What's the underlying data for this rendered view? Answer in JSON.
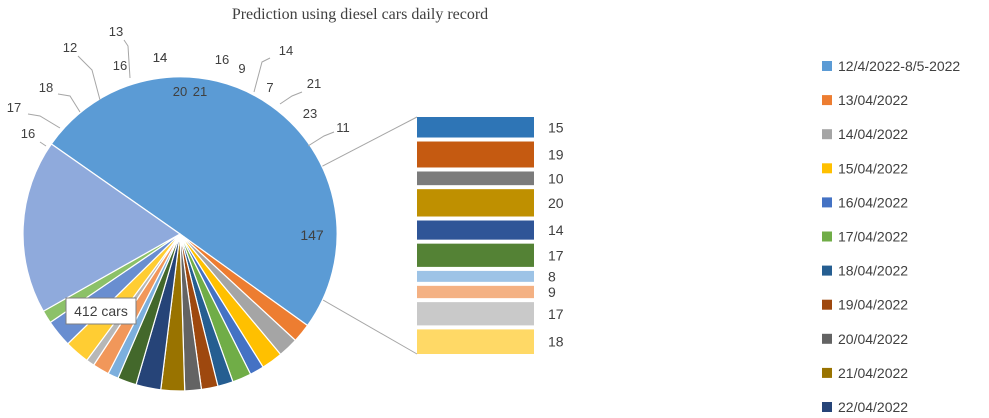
{
  "chart_data": {
    "type": "pie",
    "subtype": "bar-of-pie",
    "title": "Prediction using diesel cars daily record",
    "slices": [
      {
        "label": "412 cars",
        "value": 412,
        "color": "#5b9bd5",
        "boxed": true
      },
      {
        "label": "16",
        "value": 16,
        "color": "#ed7d31"
      },
      {
        "label": "17",
        "value": 17,
        "color": "#a5a5a5"
      },
      {
        "label": "18",
        "value": 18,
        "color": "#ffc000"
      },
      {
        "label": "12",
        "value": 12,
        "color": "#4472c4"
      },
      {
        "label": "16",
        "value": 16,
        "color": "#70ad47"
      },
      {
        "label": "13",
        "value": 13,
        "color": "#255e91"
      },
      {
        "label": "14",
        "value": 14,
        "color": "#9e480e"
      },
      {
        "label": "14",
        "value": 14,
        "color": "#636363"
      },
      {
        "label": "20",
        "value": 20,
        "color": "#997300"
      },
      {
        "label": "21",
        "value": 21,
        "color": "#264478"
      },
      {
        "label": "16",
        "value": 16,
        "color": "#43682b"
      },
      {
        "label": "9",
        "value": 9,
        "color": "#7cafdd"
      },
      {
        "label": "14",
        "value": 14,
        "color": "#f1975a"
      },
      {
        "label": "7",
        "value": 7,
        "color": "#b7b7b7"
      },
      {
        "label": "21",
        "value": 21,
        "color": "#ffcd33"
      },
      {
        "label": "23",
        "value": 23,
        "color": "#698ed0"
      },
      {
        "label": "11",
        "value": 11,
        "color": "#8cc168"
      },
      {
        "label": "147",
        "value": 147,
        "color": "#8faadc",
        "isOther": true
      }
    ],
    "breakdown": [
      {
        "label": "15",
        "value": 15,
        "color": "#2e75b6"
      },
      {
        "label": "19",
        "value": 19,
        "color": "#c55a11"
      },
      {
        "label": "10",
        "value": 10,
        "color": "#7b7b7b"
      },
      {
        "label": "20",
        "value": 20,
        "color": "#bf9000"
      },
      {
        "label": "14",
        "value": 14,
        "color": "#2f5597"
      },
      {
        "label": "17",
        "value": 17,
        "color": "#548235"
      },
      {
        "label": "8",
        "value": 8,
        "color": "#9dc3e6"
      },
      {
        "label": "9",
        "value": 9,
        "color": "#f4b183"
      },
      {
        "label": "17",
        "value": 17,
        "color": "#c9c9c9"
      },
      {
        "label": "18",
        "value": 18,
        "color": "#ffd966"
      }
    ],
    "legend_position": "right",
    "legend": [
      {
        "label": "12/4/2022-8/5-2022",
        "color": "#5b9bd5"
      },
      {
        "label": "13/04/2022",
        "color": "#ed7d31"
      },
      {
        "label": "14/04/2022",
        "color": "#a5a5a5"
      },
      {
        "label": "15/04/2022",
        "color": "#ffc000"
      },
      {
        "label": "16/04/2022",
        "color": "#4472c4"
      },
      {
        "label": "17/04/2022",
        "color": "#70ad47"
      },
      {
        "label": "18/04/2022",
        "color": "#255e91"
      },
      {
        "label": "19/04/2022",
        "color": "#9e480e"
      },
      {
        "label": "20/04/2022",
        "color": "#636363"
      },
      {
        "label": "21/04/2022",
        "color": "#997300"
      },
      {
        "label": "22/04/2022",
        "color": "#264478"
      }
    ]
  }
}
